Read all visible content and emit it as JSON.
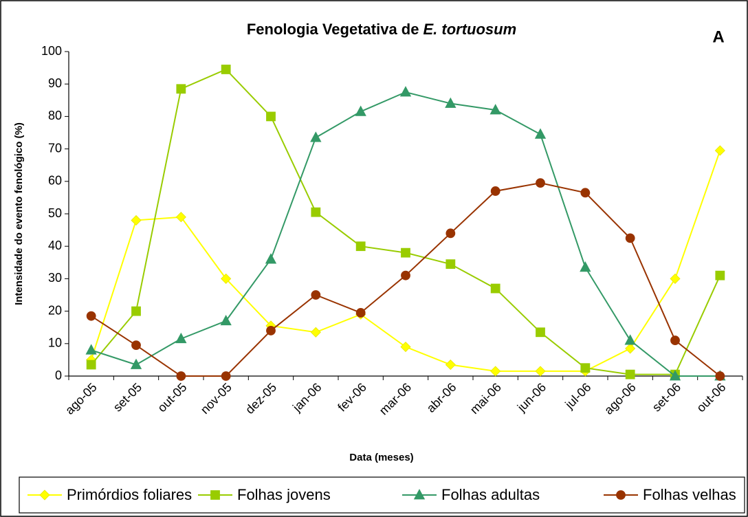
{
  "chart_data": {
    "type": "line",
    "title_parts": [
      "Fenologia Vegetativa de",
      "E. tortuosum"
    ],
    "annotation": "A",
    "xlabel": "Data (meses)",
    "ylabel": "Intensidade do evento fenológico (%)",
    "categories": [
      "ago-05",
      "set-05",
      "out-05",
      "nov-05",
      "dez-05",
      "jan-06",
      "fev-06",
      "mar-06",
      "abr-06",
      "mai-06",
      "jun-06",
      "jul-06",
      "ago-06",
      "set-06",
      "out-06"
    ],
    "series": [
      {
        "name": "Primórdios foliares",
        "color": "#ffff00",
        "marker": "diamond",
        "values": [
          5,
          48,
          49,
          30,
          15.5,
          13.5,
          19,
          9,
          3.5,
          1.5,
          1.5,
          1.5,
          8.5,
          30,
          69.5
        ]
      },
      {
        "name": "Folhas jovens",
        "color": "#99cc00",
        "marker": "square",
        "values": [
          3.5,
          20,
          88.5,
          94.5,
          80,
          50.5,
          40,
          38,
          34.5,
          27,
          13.5,
          2.5,
          0.5,
          0.5,
          31
        ]
      },
      {
        "name": "Folhas adultas",
        "color": "#339966",
        "marker": "triangle",
        "values": [
          8,
          3.5,
          11.5,
          17,
          36,
          73.5,
          81.5,
          87.5,
          84,
          82,
          74.5,
          33.5,
          11,
          0,
          0
        ]
      },
      {
        "name": "Folhas velhas",
        "color": "#993300",
        "marker": "circle",
        "values": [
          18.5,
          9.5,
          0,
          0,
          14,
          25,
          19.5,
          31,
          44,
          57,
          59.5,
          56.5,
          42.5,
          11,
          0
        ]
      }
    ],
    "ylim": [
      0,
      100
    ],
    "yticks": [
      0,
      10,
      20,
      30,
      40,
      50,
      60,
      70,
      80,
      90,
      100
    ],
    "grid": false,
    "legend": "bottom"
  }
}
